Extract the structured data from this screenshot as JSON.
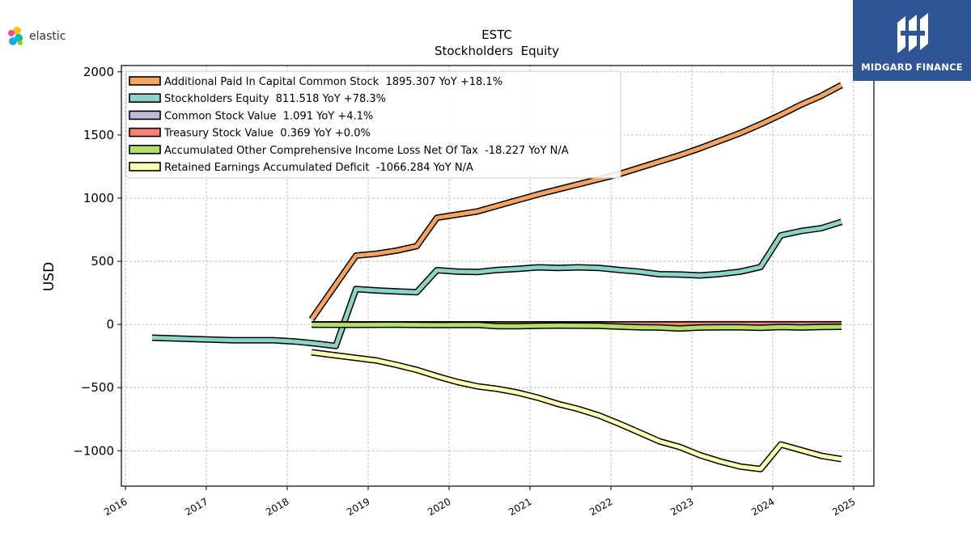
{
  "branding": {
    "logo_text": "elastic",
    "badge_text": "MIDGARD FINANCE"
  },
  "chart_data": {
    "type": "line",
    "title": "ESTC",
    "subtitle": "Stockholders  Equity",
    "ylabel": "USD",
    "xlabel": "",
    "xlim": [
      2015.95,
      2025.25
    ],
    "ylim": [
      -1280,
      2050
    ],
    "x_ticks": [
      2016,
      2017,
      2018,
      2019,
      2020,
      2021,
      2022,
      2023,
      2024,
      2025
    ],
    "y_ticks": [
      2000,
      1500,
      1000,
      500,
      0,
      -500,
      -1000
    ],
    "y_tick_labels": [
      "2000",
      "1500",
      "1000",
      "500",
      "0",
      "−500",
      "−1000"
    ],
    "grid": true,
    "legend_position": "top-left",
    "series": [
      {
        "name": "Additional Paid In Capital Common Stock  1895.307 YoY +18.1%",
        "color": "#f4a460",
        "points": [
          [
            2018.3,
            40
          ],
          [
            2018.85,
            545
          ],
          [
            2019.1,
            560
          ],
          [
            2019.35,
            585
          ],
          [
            2019.6,
            620
          ],
          [
            2019.85,
            845
          ],
          [
            2020.1,
            870
          ],
          [
            2020.35,
            895
          ],
          [
            2020.6,
            940
          ],
          [
            2020.85,
            985
          ],
          [
            2021.1,
            1030
          ],
          [
            2021.35,
            1070
          ],
          [
            2021.6,
            1110
          ],
          [
            2021.85,
            1150
          ],
          [
            2022.1,
            1190
          ],
          [
            2022.35,
            1240
          ],
          [
            2022.6,
            1290
          ],
          [
            2022.85,
            1340
          ],
          [
            2023.1,
            1395
          ],
          [
            2023.35,
            1455
          ],
          [
            2023.6,
            1515
          ],
          [
            2023.85,
            1585
          ],
          [
            2024.1,
            1660
          ],
          [
            2024.35,
            1740
          ],
          [
            2024.6,
            1810
          ],
          [
            2024.85,
            1895
          ]
        ]
      },
      {
        "name": "Stockholders Equity  811.518 YoY +78.3%",
        "color": "#8dd3c7",
        "points": [
          [
            2016.33,
            -105
          ],
          [
            2016.83,
            -115
          ],
          [
            2017.33,
            -125
          ],
          [
            2017.83,
            -125
          ],
          [
            2018.1,
            -135
          ],
          [
            2018.33,
            -150
          ],
          [
            2018.6,
            -170
          ],
          [
            2018.85,
            280
          ],
          [
            2019.1,
            270
          ],
          [
            2019.35,
            262
          ],
          [
            2019.6,
            255
          ],
          [
            2019.85,
            430
          ],
          [
            2020.1,
            418
          ],
          [
            2020.35,
            415
          ],
          [
            2020.6,
            432
          ],
          [
            2020.85,
            440
          ],
          [
            2021.1,
            452
          ],
          [
            2021.35,
            447
          ],
          [
            2021.6,
            452
          ],
          [
            2021.85,
            448
          ],
          [
            2022.1,
            432
          ],
          [
            2022.35,
            418
          ],
          [
            2022.6,
            398
          ],
          [
            2022.85,
            395
          ],
          [
            2023.1,
            388
          ],
          [
            2023.35,
            400
          ],
          [
            2023.6,
            418
          ],
          [
            2023.85,
            455
          ],
          [
            2024.1,
            705
          ],
          [
            2024.35,
            740
          ],
          [
            2024.6,
            762
          ],
          [
            2024.85,
            812
          ]
        ]
      },
      {
        "name": "Common Stock Value  1.091 YoY +4.1%",
        "color": "#bebada",
        "points": [
          [
            2018.3,
            1
          ],
          [
            2024.85,
            1.091
          ]
        ]
      },
      {
        "name": "Treasury Stock Value  0.369 YoY +0.0%",
        "color": "#fb8072",
        "points": [
          [
            2018.3,
            0.369
          ],
          [
            2024.85,
            0.369
          ]
        ]
      },
      {
        "name": "Accumulated Other Comprehensive Income Loss Net Of Tax  -18.227 YoY N/A",
        "color": "#b3de69",
        "points": [
          [
            2018.3,
            -2
          ],
          [
            2018.85,
            -3
          ],
          [
            2019.35,
            -2
          ],
          [
            2019.85,
            -5
          ],
          [
            2020.35,
            -3
          ],
          [
            2020.6,
            -14
          ],
          [
            2020.85,
            -14
          ],
          [
            2021.1,
            -10
          ],
          [
            2021.35,
            -9
          ],
          [
            2021.85,
            -11
          ],
          [
            2022.1,
            -17
          ],
          [
            2022.35,
            -22
          ],
          [
            2022.6,
            -24
          ],
          [
            2022.85,
            -32
          ],
          [
            2023.1,
            -24
          ],
          [
            2023.35,
            -22
          ],
          [
            2023.6,
            -22
          ],
          [
            2023.85,
            -27
          ],
          [
            2024.1,
            -20
          ],
          [
            2024.35,
            -24
          ],
          [
            2024.6,
            -20
          ],
          [
            2024.85,
            -18.2
          ]
        ]
      },
      {
        "name": "Retained Earnings Accumulated Deficit  -1066.284 YoY N/A",
        "color": "#ffffb3",
        "points": [
          [
            2018.3,
            -220
          ],
          [
            2018.6,
            -245
          ],
          [
            2018.85,
            -265
          ],
          [
            2019.1,
            -285
          ],
          [
            2019.35,
            -320
          ],
          [
            2019.6,
            -360
          ],
          [
            2019.85,
            -410
          ],
          [
            2020.1,
            -455
          ],
          [
            2020.35,
            -490
          ],
          [
            2020.6,
            -510
          ],
          [
            2020.85,
            -540
          ],
          [
            2021.1,
            -580
          ],
          [
            2021.35,
            -630
          ],
          [
            2021.6,
            -670
          ],
          [
            2021.85,
            -720
          ],
          [
            2022.1,
            -785
          ],
          [
            2022.35,
            -855
          ],
          [
            2022.6,
            -925
          ],
          [
            2022.85,
            -970
          ],
          [
            2023.1,
            -1035
          ],
          [
            2023.35,
            -1085
          ],
          [
            2023.6,
            -1125
          ],
          [
            2023.85,
            -1145
          ],
          [
            2024.1,
            -950
          ],
          [
            2024.35,
            -995
          ],
          [
            2024.6,
            -1040
          ],
          [
            2024.85,
            -1066
          ]
        ]
      }
    ]
  }
}
